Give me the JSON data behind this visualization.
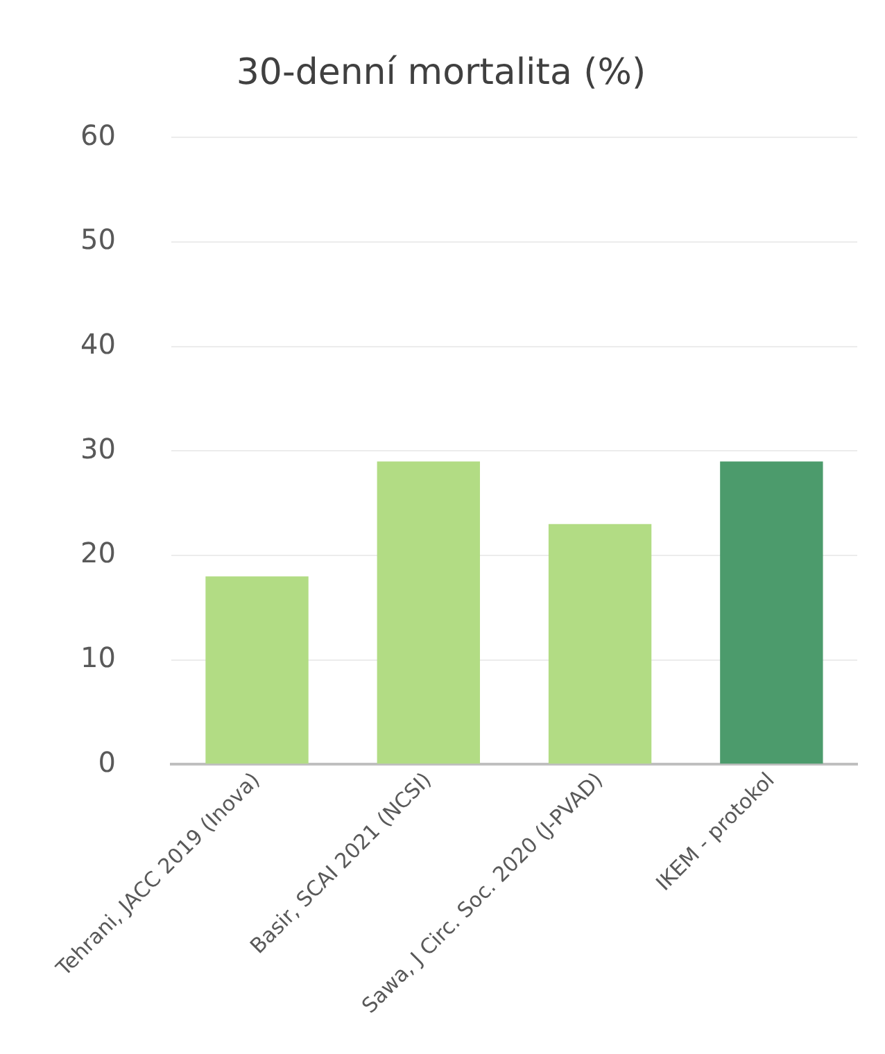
{
  "chart_data": {
    "type": "bar",
    "title": "30-denní mortalita (%)",
    "categories": [
      "Tehrani, JACC 2019 (Inova)",
      "Basir, SCAI 2021 (NCSI)",
      "Sawa, J Circ. Soc. 2020 (J-PVAD)",
      "IKEM - protokol"
    ],
    "values": [
      18,
      29,
      23,
      29
    ],
    "colors": [
      "#b2dc84",
      "#b2dc84",
      "#b2dc84",
      "#4c9b6c"
    ],
    "ylim": [
      0,
      60
    ],
    "yticks": [
      0,
      10,
      20,
      30,
      40,
      50,
      60
    ],
    "grid": "y"
  }
}
